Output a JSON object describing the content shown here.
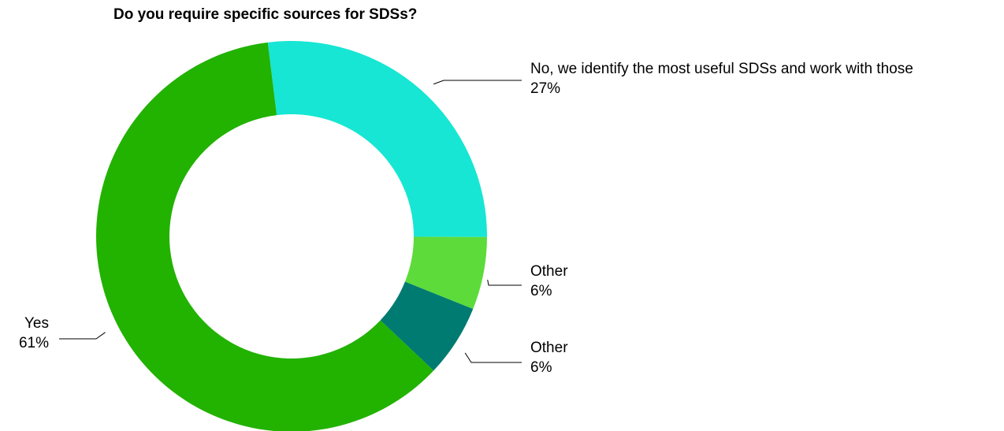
{
  "chart_data": {
    "type": "pie",
    "title": "Do you require specific sources for SDSs?",
    "slices": [
      {
        "label": "No, we identify the most useful SDSs and work with those",
        "value": 27,
        "display": "27%",
        "color": "#17e6d4"
      },
      {
        "label": "Other",
        "value": 6,
        "display": "6%",
        "color": "#5ddb3a"
      },
      {
        "label": "Other",
        "value": 6,
        "display": "6%",
        "color": "#007b72"
      },
      {
        "label": "Yes",
        "value": 61,
        "display": "61%",
        "color": "#22b200"
      }
    ]
  }
}
